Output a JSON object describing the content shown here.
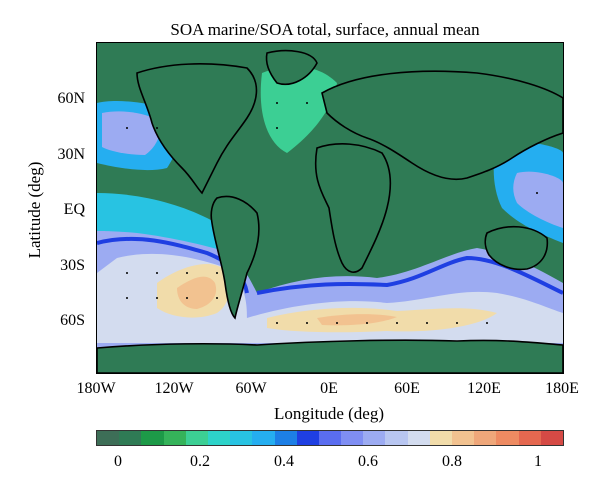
{
  "title": "SOA marine/SOA total, surface, annual mean",
  "axes": {
    "xlabel": "Longitude (deg)",
    "ylabel": "Latitude (deg)",
    "xticks": [
      "180W",
      "120W",
      "60W",
      "0E",
      "60E",
      "120E",
      "180E"
    ],
    "yticks": [
      "60N",
      "30N",
      "EQ",
      "30S",
      "60S"
    ]
  },
  "colorbar": {
    "ticks": [
      "0",
      "0.2",
      "0.4",
      "0.6",
      "0.8",
      "1"
    ],
    "colors": [
      "#3d6e57",
      "#2f7b55",
      "#1d9a48",
      "#35b35a",
      "#3ccf94",
      "#2dd3c9",
      "#28c3e2",
      "#25aef0",
      "#1d7fe6",
      "#1f3fe2",
      "#5a6df0",
      "#7f8ef3",
      "#9cabf2",
      "#b8c6f1",
      "#d3dcef",
      "#f1dcaa",
      "#f2c290",
      "#efa77a",
      "#ee8b62",
      "#e56850",
      "#d54a45"
    ]
  },
  "colors": {
    "land": "#2f7b55",
    "ocean_high": "#f2c290",
    "coast": "#000000"
  }
}
